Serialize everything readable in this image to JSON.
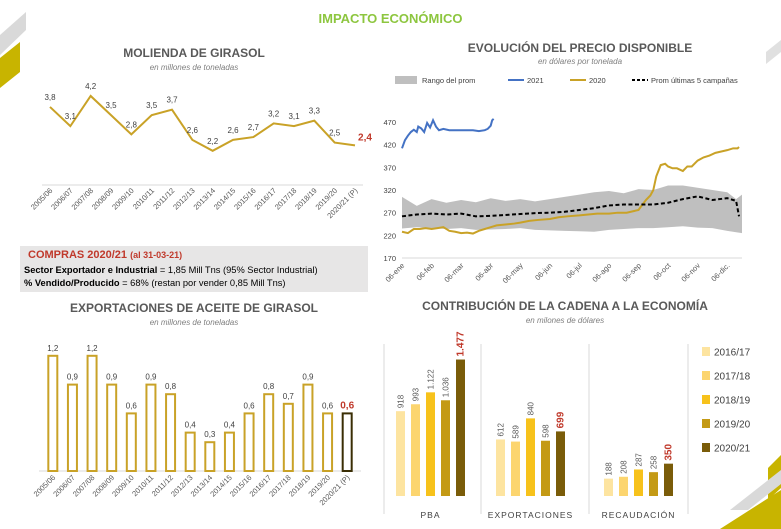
{
  "page_title": "IMPACTO ECONÓMICO",
  "colors": {
    "green": "#8dc63f",
    "gold": "#c9a227",
    "red": "#c0392b",
    "blue": "#4472c4",
    "band": "#bfbfbf"
  },
  "molienda": {
    "title": "MOLIENDA DE GIRASOL",
    "subtitle": "en millones de toneladas"
  },
  "precio": {
    "title": "EVOLUCIÓN DEL PRECIO DISPONIBLE",
    "subtitle": "en dólares por tonelada",
    "legend": {
      "band": "Rango del prom",
      "s2021": "2021",
      "s2020": "2020",
      "prom": "Prom últimas 5 campañas"
    }
  },
  "compras": {
    "title": "COMPRAS 2020/21",
    "title_note": "(al 31-03-21)",
    "line1_bold": "Sector Exportador e Industrial",
    "line1_rest": " = 1,85 Mill Tns (95% Sector Industrial)",
    "line2_bold": "% Vendido/Producido",
    "line2_rest": " = 68% (restan por vender 0,85 Mill Tns)"
  },
  "exportaciones": {
    "title": "EXPORTACIONES DE ACEITE DE GIRASOL",
    "subtitle": "en millones de toneladas"
  },
  "contribucion": {
    "title": "CONTRIBUCIÓN DE LA CADENA A LA ECONOMÍA",
    "subtitle": "en milones de dólares"
  },
  "chart_data": [
    {
      "id": "molienda",
      "type": "line",
      "title": "MOLIENDA DE GIRASOL",
      "subtitle": "en millones de toneladas",
      "categories": [
        "2005/06",
        "2006/07",
        "2007/08",
        "2008/09",
        "2009/10",
        "2010/11",
        "2011/12",
        "2012/13",
        "2013/14",
        "2014/15",
        "2015/16",
        "2016/17",
        "2017/18",
        "2018/19",
        "2019/20",
        "2020/21 (P)"
      ],
      "labels": [
        "3,8",
        "3,1",
        "4,2",
        "3,5",
        "2,8",
        "3,5",
        "3,7",
        "2,6",
        "2,2",
        "2,6",
        "2,7",
        "3,2",
        "3,1",
        "3,3",
        "2,5",
        "2,4"
      ],
      "values": [
        3.8,
        3.1,
        4.2,
        3.5,
        2.8,
        3.5,
        3.7,
        2.6,
        2.2,
        2.6,
        2.7,
        3.2,
        3.1,
        3.3,
        2.5,
        2.4
      ],
      "ylim": [
        1.5,
        4.6
      ],
      "grid": false
    },
    {
      "id": "precio",
      "type": "line",
      "title": "EVOLUCIÓN DEL PRECIO DISPONIBLE",
      "subtitle": "en dólares por tonelada",
      "x": [
        "06-ene",
        "06-feb",
        "06-mar",
        "06-abr",
        "06-may",
        "06-jun",
        "06-jul",
        "06-ago",
        "06-sep",
        "06-oct",
        "06-nov",
        "06-dic."
      ],
      "yticks": [
        170,
        220,
        270,
        320,
        370,
        420,
        470
      ],
      "ylim": [
        170,
        490
      ],
      "grid": false,
      "legend_position": "top",
      "series": [
        {
          "name": "Rango del prom",
          "kind": "band",
          "upper": [
            [
              0,
              305
            ],
            [
              0.5,
              285
            ],
            [
              1,
              300
            ],
            [
              1.5,
              292
            ],
            [
              2,
              298
            ],
            [
              2.5,
              293
            ],
            [
              3,
              302
            ],
            [
              3.5,
              296
            ],
            [
              4,
              300
            ],
            [
              4.5,
              295
            ],
            [
              5,
              300
            ],
            [
              5.5,
              305
            ],
            [
              6,
              310
            ],
            [
              6.5,
              315
            ],
            [
              7,
              318
            ],
            [
              7.5,
              313
            ],
            [
              8,
              322
            ],
            [
              8.5,
              320
            ],
            [
              9,
              330
            ],
            [
              9.5,
              330
            ],
            [
              10,
              325
            ],
            [
              10.5,
              320
            ],
            [
              11,
              315
            ],
            [
              11.3,
              300
            ],
            [
              11.5,
              310
            ]
          ],
          "lower": [
            [
              0,
              235
            ],
            [
              0.5,
              238
            ],
            [
              1,
              236
            ],
            [
              1.5,
              234
            ],
            [
              2,
              236
            ],
            [
              2.5,
              232
            ],
            [
              3,
              233
            ],
            [
              3.5,
              234
            ],
            [
              4,
              236
            ],
            [
              4.5,
              232
            ],
            [
              5,
              231
            ],
            [
              5.5,
              230
            ],
            [
              6,
              229
            ],
            [
              6.5,
              228
            ],
            [
              7,
              232
            ],
            [
              7.5,
              234
            ],
            [
              8,
              236
            ],
            [
              8.5,
              236
            ],
            [
              9,
              238
            ],
            [
              9.5,
              240
            ],
            [
              10,
              237
            ],
            [
              10.5,
              236
            ],
            [
              11,
              230
            ],
            [
              11.5,
              225
            ]
          ]
        },
        {
          "name": "2021",
          "color": "#4472c4",
          "points": [
            [
              0,
              412
            ],
            [
              0.1,
              430
            ],
            [
              0.2,
              440
            ],
            [
              0.3,
              448
            ],
            [
              0.4,
              453
            ],
            [
              0.5,
              448
            ],
            [
              0.55,
              460
            ],
            [
              0.65,
              456
            ],
            [
              0.75,
              448
            ],
            [
              0.85,
              468
            ],
            [
              0.95,
              458
            ],
            [
              1.05,
              474
            ],
            [
              1.15,
              460
            ],
            [
              1.25,
              452
            ],
            [
              1.4,
              455
            ],
            [
              1.6,
              452
            ],
            [
              1.8,
              452
            ],
            [
              2,
              452
            ],
            [
              2.2,
              452
            ],
            [
              2.4,
              452
            ],
            [
              2.6,
              450
            ],
            [
              2.8,
              452
            ],
            [
              2.9,
              455
            ],
            [
              3.0,
              462
            ],
            [
              3.05,
              474
            ],
            [
              3.1,
              477
            ]
          ]
        },
        {
          "name": "2020",
          "color": "#c9a227",
          "points": [
            [
              0,
              228
            ],
            [
              0.2,
              225
            ],
            [
              0.4,
              234
            ],
            [
              0.6,
              234
            ],
            [
              0.8,
              236
            ],
            [
              1,
              234
            ],
            [
              1.2,
              236
            ],
            [
              1.4,
              238
            ],
            [
              1.6,
              230
            ],
            [
              1.8,
              228
            ],
            [
              2,
              225
            ],
            [
              2.2,
              226
            ],
            [
              2.4,
              224
            ],
            [
              2.6,
              230
            ],
            [
              2.8,
              234
            ],
            [
              3,
              238
            ],
            [
              3.2,
              242
            ],
            [
              3.5,
              244
            ],
            [
              3.8,
              246
            ],
            [
              4,
              248
            ],
            [
              4.3,
              252
            ],
            [
              4.6,
              254
            ],
            [
              5,
              256
            ],
            [
              5.3,
              260
            ],
            [
              5.6,
              262
            ],
            [
              6,
              264
            ],
            [
              6.3,
              266
            ],
            [
              6.6,
              268
            ],
            [
              7,
              268
            ],
            [
              7.3,
              270
            ],
            [
              7.6,
              270
            ],
            [
              8,
              276
            ],
            [
              8.1,
              285
            ],
            [
              8.25,
              298
            ],
            [
              8.4,
              308
            ],
            [
              8.5,
              320
            ],
            [
              8.6,
              350
            ],
            [
              8.75,
              375
            ],
            [
              8.9,
              378
            ],
            [
              9,
              372
            ],
            [
              9.15,
              368
            ],
            [
              9.3,
              368
            ],
            [
              9.5,
              362
            ],
            [
              9.65,
              372
            ],
            [
              9.8,
              372
            ],
            [
              10,
              385
            ],
            [
              10.2,
              392
            ],
            [
              10.4,
              396
            ],
            [
              10.6,
              402
            ],
            [
              10.8,
              405
            ],
            [
              11,
              408
            ],
            [
              11.2,
              412
            ],
            [
              11.35,
              412
            ],
            [
              11.4,
              415
            ]
          ]
        },
        {
          "name": "Prom últimas 5 campañas",
          "color": "#000000",
          "dashed": true,
          "points": [
            [
              0,
              262
            ],
            [
              0.5,
              266
            ],
            [
              1,
              268
            ],
            [
              1.5,
              266
            ],
            [
              2,
              268
            ],
            [
              2.5,
              262
            ],
            [
              3,
              263
            ],
            [
              3.5,
              265
            ],
            [
              4,
              267
            ],
            [
              4.5,
              269
            ],
            [
              5,
              270
            ],
            [
              5.5,
              272
            ],
            [
              6,
              276
            ],
            [
              6.5,
              280
            ],
            [
              7,
              286
            ],
            [
              7.5,
              288
            ],
            [
              8,
              288
            ],
            [
              8.5,
              288
            ],
            [
              9,
              292
            ],
            [
              9.5,
              300
            ],
            [
              10,
              306
            ],
            [
              10.5,
              298
            ],
            [
              11,
              302
            ],
            [
              11.3,
              296
            ],
            [
              11.4,
              262
            ]
          ]
        }
      ]
    },
    {
      "id": "exportaciones",
      "type": "bar",
      "title": "EXPORTACIONES DE ACEITE DE GIRASOL",
      "subtitle": "en millones de toneladas",
      "categories": [
        "2005/06",
        "2006/07",
        "2007/08",
        "2008/09",
        "2009/10",
        "2010/11",
        "2011/12",
        "2012/13",
        "2013/14",
        "2014/15",
        "2015/16",
        "2016/17",
        "2017/18",
        "2018/19",
        "2019/20",
        "2020/21 (P)"
      ],
      "labels": [
        "1,2",
        "0,9",
        "1,2",
        "0,9",
        "0,6",
        "0,9",
        "0,8",
        "0,4",
        "0,3",
        "0,4",
        "0,6",
        "0,8",
        "0,7",
        "0,9",
        "0,6",
        "0,6"
      ],
      "values": [
        1.2,
        0.9,
        1.2,
        0.9,
        0.6,
        0.9,
        0.8,
        0.4,
        0.3,
        0.4,
        0.6,
        0.8,
        0.7,
        0.9,
        0.6,
        0.6
      ],
      "ylim": [
        0,
        1.25
      ],
      "grid": false
    },
    {
      "id": "contribucion",
      "type": "bar",
      "title": "CONTRIBUCIÓN DE LA CADENA A LA ECONOMÍA",
      "subtitle": "en milones de dólares",
      "categories": [
        "PBA",
        "EXPORTACIONES",
        "RECAUDACIÓN"
      ],
      "legend_position": "right",
      "ylim": [
        0,
        1500
      ],
      "series": [
        {
          "name": "2016/17",
          "color": "#fde4a0",
          "values": [
            918,
            612,
            188
          ],
          "labels": [
            "918",
            "612",
            "188"
          ]
        },
        {
          "name": "2017/18",
          "color": "#fcd56f",
          "values": [
            993,
            589,
            208
          ],
          "labels": [
            "993",
            "589",
            "208"
          ]
        },
        {
          "name": "2018/19",
          "color": "#f7c21b",
          "values": [
            1122,
            840,
            287
          ],
          "labels": [
            "1.122",
            "840",
            "287"
          ]
        },
        {
          "name": "2019/20",
          "color": "#c49a15",
          "values": [
            1036,
            598,
            258
          ],
          "labels": [
            "1.036",
            "598",
            "258"
          ]
        },
        {
          "name": "2020/21",
          "color": "#7a5c09",
          "values": [
            1477,
            699,
            350
          ],
          "labels": [
            "1.477",
            "699",
            "350"
          ]
        }
      ]
    }
  ]
}
